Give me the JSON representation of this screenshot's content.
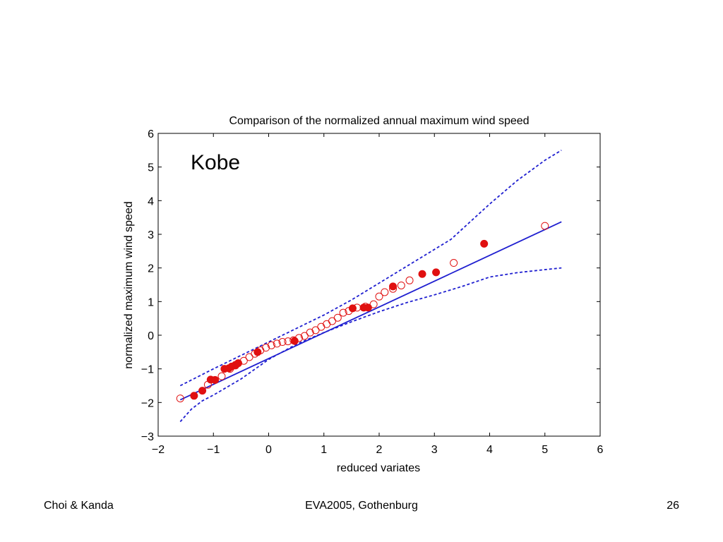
{
  "slide": {
    "footer_left": "Choi & Kanda",
    "footer_center": "EVA2005, Gothenburg",
    "footer_right": "26"
  },
  "chart_data": {
    "type": "scatter",
    "title": "Comparison of the normalized annual maximum wind speed",
    "annotation": "Kobe",
    "xlabel": "reduced variates",
    "ylabel": "normalized maximum wind speed",
    "xlim": [
      -2,
      6
    ],
    "ylim": [
      -3,
      6
    ],
    "xticks": [
      "-2",
      "-1",
      "0",
      "1",
      "2",
      "3",
      "4",
      "5",
      "6"
    ],
    "yticks": [
      "-3",
      "-2",
      "-1",
      "0",
      "1",
      "2",
      "3",
      "4",
      "5",
      "6"
    ],
    "grid": false,
    "colors": {
      "lines": "#1f1fd0",
      "markers": "#e01010"
    },
    "series": [
      {
        "kind": "line-solid",
        "x": [
          -1.6,
          5.3
        ],
        "y": [
          -1.92,
          3.37
        ]
      },
      {
        "kind": "line-dashed",
        "x": [
          -1.6,
          -1.0,
          -0.5,
          0.0,
          0.5,
          1.0,
          1.5,
          2.0,
          2.5,
          3.0,
          3.3,
          3.6,
          4.0,
          4.5,
          5.0,
          5.3
        ],
        "y": [
          -1.5,
          -1.0,
          -0.6,
          -0.2,
          0.2,
          0.6,
          1.05,
          1.55,
          2.05,
          2.55,
          2.85,
          3.3,
          3.9,
          4.6,
          5.2,
          5.5
        ]
      },
      {
        "kind": "line-dashed",
        "x": [
          -1.6,
          -1.4,
          -1.2,
          -1.0,
          -0.5,
          0.0,
          0.5,
          1.0,
          1.5,
          2.0,
          2.5,
          3.0,
          3.5,
          4.0,
          4.5,
          5.0,
          5.3
        ],
        "y": [
          -2.57,
          -2.2,
          -1.95,
          -1.78,
          -1.3,
          -0.72,
          -0.27,
          0.08,
          0.4,
          0.7,
          0.97,
          1.2,
          1.45,
          1.73,
          1.86,
          1.95,
          2.0
        ]
      },
      {
        "kind": "open-circles",
        "x": [
          -1.6,
          -1.1,
          -0.85,
          -0.7,
          -0.6,
          -0.45,
          -0.35,
          -0.25,
          -0.15,
          -0.05,
          0.05,
          0.15,
          0.25,
          0.35,
          0.45,
          0.55,
          0.65,
          0.75,
          0.85,
          0.95,
          1.05,
          1.15,
          1.25,
          1.35,
          1.45,
          1.6,
          1.75,
          1.9,
          2.0,
          2.1,
          2.25,
          2.4,
          2.55,
          3.35,
          5.0
        ],
        "y": [
          -1.88,
          -1.47,
          -1.22,
          -1.0,
          -0.9,
          -0.76,
          -0.65,
          -0.55,
          -0.45,
          -0.37,
          -0.3,
          -0.25,
          -0.2,
          -0.18,
          -0.15,
          -0.08,
          -0.02,
          0.08,
          0.15,
          0.25,
          0.33,
          0.42,
          0.52,
          0.67,
          0.72,
          0.82,
          0.85,
          0.92,
          1.15,
          1.28,
          1.38,
          1.48,
          1.63,
          2.15,
          3.25
        ]
      },
      {
        "kind": "filled-circles",
        "x": [
          -1.35,
          -1.2,
          -1.05,
          -0.97,
          -0.8,
          -0.72,
          -0.67,
          -0.6,
          -0.55,
          -0.2,
          0.47,
          1.52,
          1.72,
          1.8,
          2.25,
          2.78,
          3.03,
          3.9
        ],
        "y": [
          -1.8,
          -1.65,
          -1.32,
          -1.33,
          -1.0,
          -0.98,
          -0.93,
          -0.88,
          -0.83,
          -0.5,
          -0.17,
          0.8,
          0.82,
          0.82,
          1.45,
          1.82,
          1.87,
          2.72
        ]
      }
    ]
  }
}
